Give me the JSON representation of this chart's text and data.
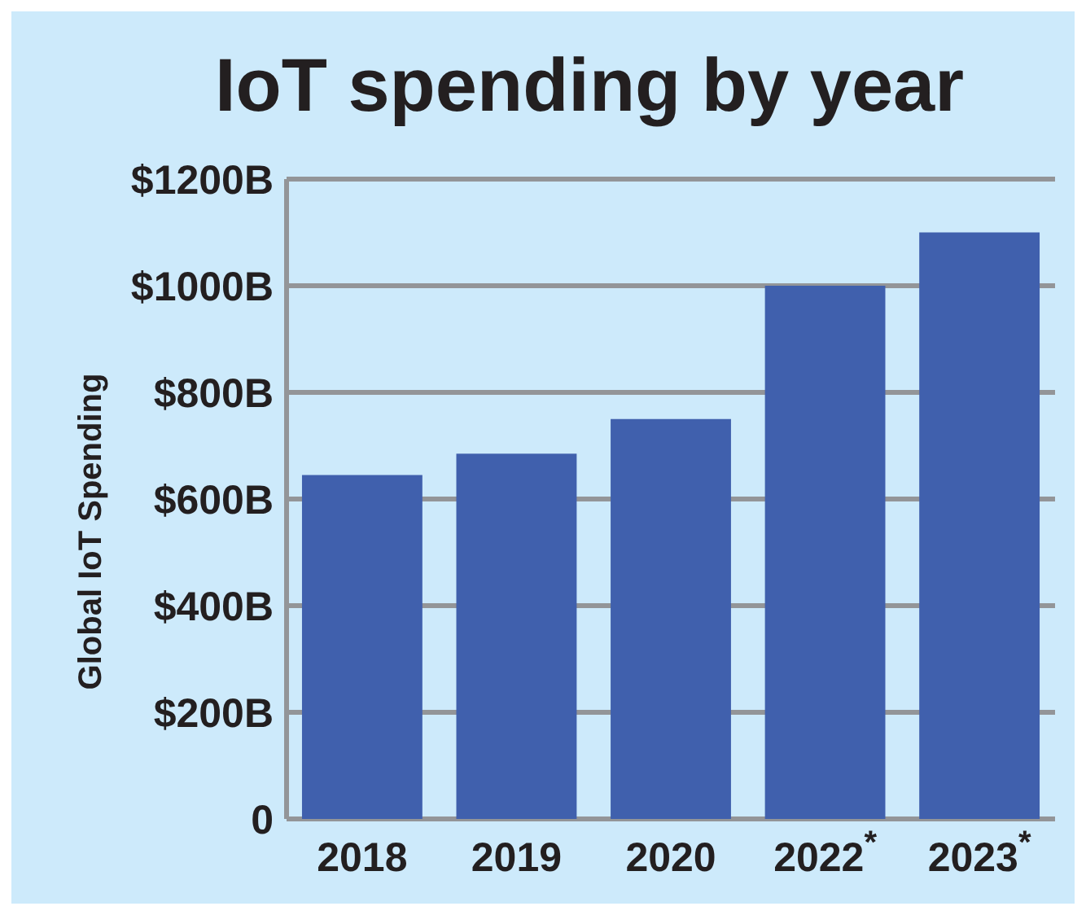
{
  "chart_data": {
    "type": "bar",
    "title": "IoT spending by year",
    "ylabel": "Global IoT Spending",
    "categories": [
      "2018",
      "2019",
      "2020",
      "2022$^{*}$",
      "2023$^{*}$"
    ],
    "values": [
      645,
      685,
      750,
      1000,
      1100
    ],
    "color": "#4060ad",
    "ylim": [
      0,
      1200
    ],
    "yticks": [
      {
        "value": 0,
        "label": "0"
      },
      {
        "value": 200,
        "label": "$200B"
      },
      {
        "value": 400,
        "label": "$400B"
      },
      {
        "value": 600,
        "label": "$600B"
      },
      {
        "value": 800,
        "label": "$800B"
      },
      {
        "value": 1000,
        "label": "$1000B"
      },
      {
        "value": 1200,
        "label": "$1200B"
      }
    ],
    "grid": "y"
  }
}
